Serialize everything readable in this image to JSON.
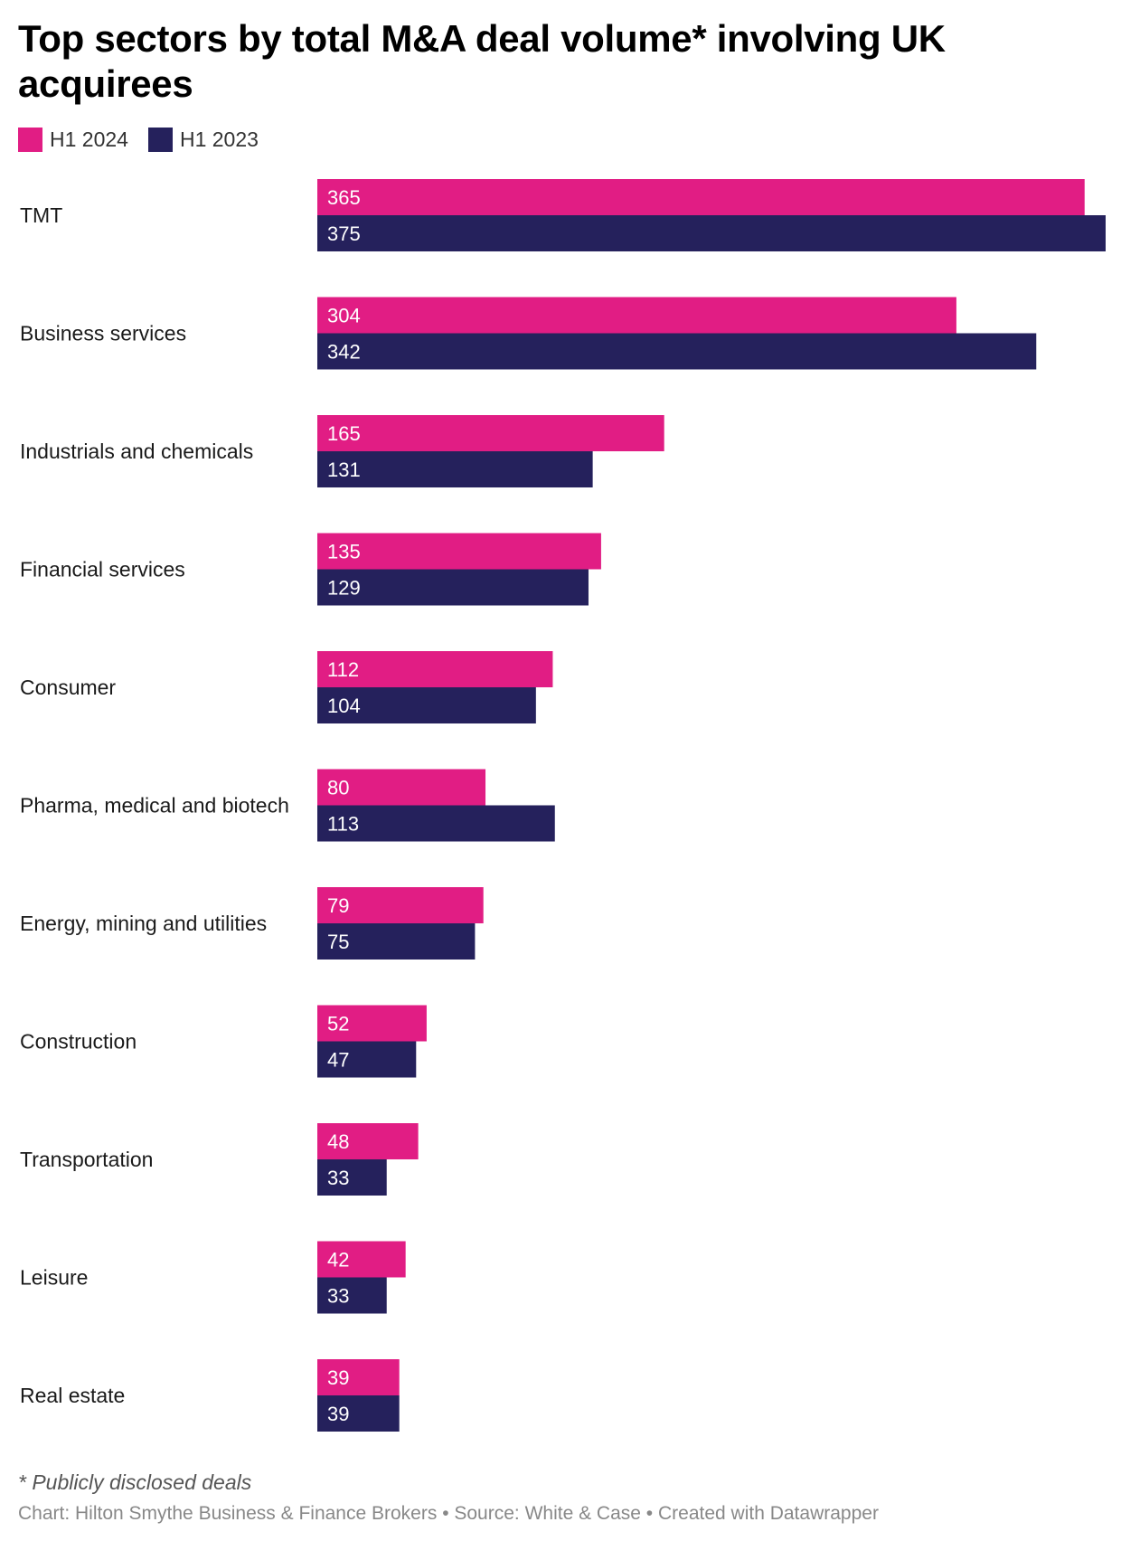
{
  "title": "Top sectors by total M&A deal volume* involving UK acquirees",
  "legend": [
    {
      "label": "H1 2024",
      "color": "#e11d84"
    },
    {
      "label": "H1 2023",
      "color": "#25215c"
    }
  ],
  "footnote": "* Publicly disclosed deals",
  "credit": "Chart: Hilton Smythe Business & Finance Brokers • Source: White & Case • Created with Datawrapper",
  "chart_data": {
    "type": "bar",
    "orientation": "horizontal",
    "categories": [
      "TMT",
      "Business services",
      "Industrials and chemicals",
      "Financial services",
      "Consumer",
      "Pharma, medical and biotech",
      "Energy, mining and utilities",
      "Construction",
      "Transportation",
      "Leisure",
      "Real estate"
    ],
    "series": [
      {
        "name": "H1 2024",
        "color": "#e11d84",
        "values": [
          365,
          304,
          165,
          135,
          112,
          80,
          79,
          52,
          48,
          42,
          39
        ]
      },
      {
        "name": "H1 2023",
        "color": "#25215c",
        "values": [
          375,
          342,
          131,
          129,
          104,
          113,
          75,
          47,
          33,
          33,
          39
        ]
      }
    ],
    "xlim": [
      0,
      375
    ],
    "data_labels": "inside-left",
    "legend_position": "top-left",
    "grid": false
  }
}
